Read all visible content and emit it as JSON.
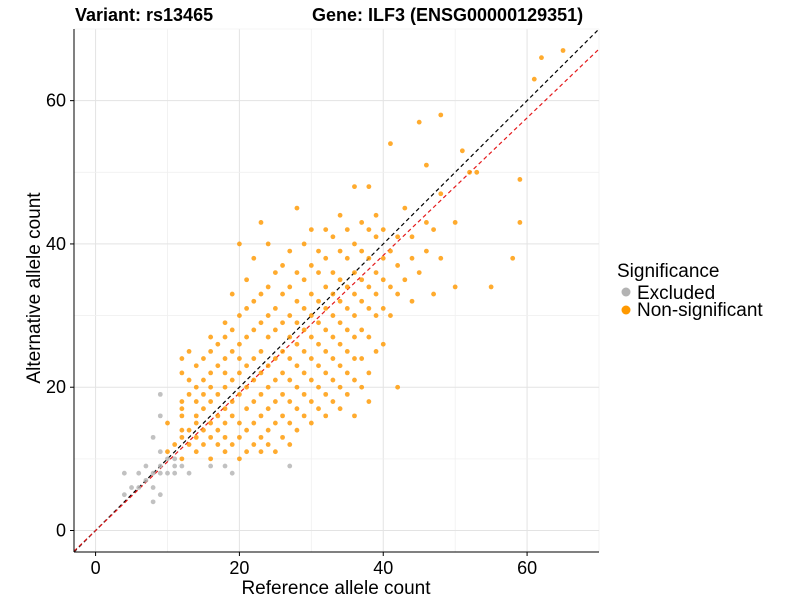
{
  "title_left": "Variant: rs13465",
  "title_right": "Gene: ILF3 (ENSG00000129351)",
  "legend": {
    "title": "Significance",
    "items": [
      {
        "label": "Excluded",
        "color": "#b3b3b3"
      },
      {
        "label": "Non-significant",
        "color": "#ff9900"
      }
    ]
  },
  "chart_data": {
    "type": "scatter",
    "title": "Variant: rs13465    Gene: ILF3 (ENSG00000129351)",
    "xlabel": "Reference allele count",
    "ylabel": "Alternative allele count",
    "xlim": [
      -3,
      70
    ],
    "ylim": [
      -3,
      70
    ],
    "xticks": [
      0,
      20,
      40,
      60
    ],
    "yticks": [
      0,
      20,
      40,
      60
    ],
    "grid": true,
    "legend_position": "right",
    "reference_lines": [
      {
        "name": "identity",
        "slope": 1,
        "intercept": 0,
        "color": "#000000",
        "style": "dashed"
      },
      {
        "name": "fit",
        "slope": 0.96,
        "intercept": 0,
        "color": "#e41a1c",
        "style": "dashed"
      }
    ],
    "series": [
      {
        "name": "Excluded",
        "color": "#b3b3b3",
        "points": [
          [
            4,
            5
          ],
          [
            4,
            8
          ],
          [
            5,
            6
          ],
          [
            6,
            8
          ],
          [
            6,
            6
          ],
          [
            7,
            7
          ],
          [
            7,
            9
          ],
          [
            8,
            4
          ],
          [
            8,
            6
          ],
          [
            8,
            8
          ],
          [
            8,
            13
          ],
          [
            9,
            5
          ],
          [
            9,
            8
          ],
          [
            9,
            9
          ],
          [
            9,
            11
          ],
          [
            9,
            16
          ],
          [
            9,
            19
          ],
          [
            10,
            8
          ],
          [
            10,
            10
          ],
          [
            11,
            8
          ],
          [
            11,
            9
          ],
          [
            11,
            10
          ],
          [
            12,
            9
          ],
          [
            13,
            8
          ],
          [
            16,
            9
          ],
          [
            18,
            9
          ],
          [
            19,
            8
          ],
          [
            27,
            9
          ]
        ]
      },
      {
        "name": "Non-significant",
        "color": "#ff9900",
        "points": [
          [
            10,
            11
          ],
          [
            10,
            15
          ],
          [
            11,
            12
          ],
          [
            12,
            10
          ],
          [
            12,
            13
          ],
          [
            12,
            14
          ],
          [
            12,
            16
          ],
          [
            12,
            17
          ],
          [
            12,
            18
          ],
          [
            12,
            22
          ],
          [
            12,
            24
          ],
          [
            13,
            12
          ],
          [
            13,
            14
          ],
          [
            13,
            19
          ],
          [
            13,
            21
          ],
          [
            13,
            25
          ],
          [
            14,
            11
          ],
          [
            14,
            13
          ],
          [
            14,
            15
          ],
          [
            14,
            16
          ],
          [
            14,
            18
          ],
          [
            14,
            20
          ],
          [
            14,
            23
          ],
          [
            15,
            12
          ],
          [
            15,
            14
          ],
          [
            15,
            17
          ],
          [
            15,
            19
          ],
          [
            15,
            21
          ],
          [
            15,
            24
          ],
          [
            16,
            10
          ],
          [
            16,
            13
          ],
          [
            16,
            15
          ],
          [
            16,
            18
          ],
          [
            16,
            20
          ],
          [
            16,
            22
          ],
          [
            16,
            25
          ],
          [
            16,
            27
          ],
          [
            17,
            12
          ],
          [
            17,
            14
          ],
          [
            17,
            16
          ],
          [
            17,
            19
          ],
          [
            17,
            23
          ],
          [
            17,
            26
          ],
          [
            18,
            11
          ],
          [
            18,
            13
          ],
          [
            18,
            15
          ],
          [
            18,
            17
          ],
          [
            18,
            20
          ],
          [
            18,
            22
          ],
          [
            18,
            24
          ],
          [
            18,
            27
          ],
          [
            18,
            29
          ],
          [
            19,
            12
          ],
          [
            19,
            16
          ],
          [
            19,
            18
          ],
          [
            19,
            21
          ],
          [
            19,
            25
          ],
          [
            19,
            28
          ],
          [
            19,
            33
          ],
          [
            20,
            10
          ],
          [
            20,
            13
          ],
          [
            20,
            15
          ],
          [
            20,
            19
          ],
          [
            20,
            22
          ],
          [
            20,
            24
          ],
          [
            20,
            26
          ],
          [
            20,
            30
          ],
          [
            20,
            40
          ],
          [
            21,
            11
          ],
          [
            21,
            14
          ],
          [
            21,
            17
          ],
          [
            21,
            20
          ],
          [
            21,
            23
          ],
          [
            21,
            27
          ],
          [
            21,
            31
          ],
          [
            21,
            35
          ],
          [
            22,
            12
          ],
          [
            22,
            15
          ],
          [
            22,
            18
          ],
          [
            22,
            21
          ],
          [
            22,
            24
          ],
          [
            22,
            28
          ],
          [
            22,
            32
          ],
          [
            22,
            38
          ],
          [
            23,
            11
          ],
          [
            23,
            13
          ],
          [
            23,
            16
          ],
          [
            23,
            19
          ],
          [
            23,
            22
          ],
          [
            23,
            25
          ],
          [
            23,
            29
          ],
          [
            23,
            33
          ],
          [
            23,
            43
          ],
          [
            24,
            12
          ],
          [
            24,
            14
          ],
          [
            24,
            17
          ],
          [
            24,
            20
          ],
          [
            24,
            23
          ],
          [
            24,
            27
          ],
          [
            24,
            30
          ],
          [
            24,
            34
          ],
          [
            24,
            40
          ],
          [
            25,
            11
          ],
          [
            25,
            15
          ],
          [
            25,
            18
          ],
          [
            25,
            21
          ],
          [
            25,
            24
          ],
          [
            25,
            28
          ],
          [
            25,
            31
          ],
          [
            25,
            36
          ],
          [
            26,
            13
          ],
          [
            26,
            16
          ],
          [
            26,
            19
          ],
          [
            26,
            22
          ],
          [
            26,
            25
          ],
          [
            26,
            29
          ],
          [
            26,
            33
          ],
          [
            26,
            37
          ],
          [
            27,
            12
          ],
          [
            27,
            15
          ],
          [
            27,
            18
          ],
          [
            27,
            21
          ],
          [
            27,
            24
          ],
          [
            27,
            27
          ],
          [
            27,
            30
          ],
          [
            27,
            34
          ],
          [
            27,
            39
          ],
          [
            28,
            14
          ],
          [
            28,
            17
          ],
          [
            28,
            20
          ],
          [
            28,
            23
          ],
          [
            28,
            26
          ],
          [
            28,
            29
          ],
          [
            28,
            32
          ],
          [
            28,
            36
          ],
          [
            28,
            45
          ],
          [
            29,
            16
          ],
          [
            29,
            19
          ],
          [
            29,
            22
          ],
          [
            29,
            25
          ],
          [
            29,
            28
          ],
          [
            29,
            31
          ],
          [
            29,
            35
          ],
          [
            29,
            40
          ],
          [
            30,
            15
          ],
          [
            30,
            18
          ],
          [
            30,
            21
          ],
          [
            30,
            24
          ],
          [
            30,
            27
          ],
          [
            30,
            30
          ],
          [
            30,
            33
          ],
          [
            30,
            37
          ],
          [
            30,
            42
          ],
          [
            31,
            17
          ],
          [
            31,
            20
          ],
          [
            31,
            23
          ],
          [
            31,
            26
          ],
          [
            31,
            29
          ],
          [
            31,
            32
          ],
          [
            31,
            36
          ],
          [
            31,
            39
          ],
          [
            32,
            16
          ],
          [
            32,
            19
          ],
          [
            32,
            22
          ],
          [
            32,
            25
          ],
          [
            32,
            28
          ],
          [
            32,
            31
          ],
          [
            32,
            34
          ],
          [
            32,
            38
          ],
          [
            32,
            42
          ],
          [
            33,
            18
          ],
          [
            33,
            21
          ],
          [
            33,
            24
          ],
          [
            33,
            27
          ],
          [
            33,
            30
          ],
          [
            33,
            33
          ],
          [
            33,
            36
          ],
          [
            33,
            41
          ],
          [
            34,
            17
          ],
          [
            34,
            20
          ],
          [
            34,
            23
          ],
          [
            34,
            26
          ],
          [
            34,
            29
          ],
          [
            34,
            32
          ],
          [
            34,
            35
          ],
          [
            34,
            39
          ],
          [
            34,
            44
          ],
          [
            35,
            19
          ],
          [
            35,
            22
          ],
          [
            35,
            25
          ],
          [
            35,
            28
          ],
          [
            35,
            31
          ],
          [
            35,
            34
          ],
          [
            35,
            38
          ],
          [
            35,
            42
          ],
          [
            36,
            16
          ],
          [
            36,
            21
          ],
          [
            36,
            24
          ],
          [
            36,
            27
          ],
          [
            36,
            30
          ],
          [
            36,
            33
          ],
          [
            36,
            36
          ],
          [
            36,
            40
          ],
          [
            36,
            48
          ],
          [
            37,
            20
          ],
          [
            37,
            24
          ],
          [
            37,
            28
          ],
          [
            37,
            32
          ],
          [
            37,
            35
          ],
          [
            37,
            39
          ],
          [
            37,
            43
          ],
          [
            38,
            18
          ],
          [
            38,
            22
          ],
          [
            38,
            27
          ],
          [
            38,
            31
          ],
          [
            38,
            34
          ],
          [
            38,
            38
          ],
          [
            38,
            42
          ],
          [
            38,
            48
          ],
          [
            39,
            25
          ],
          [
            39,
            30
          ],
          [
            39,
            33
          ],
          [
            39,
            36
          ],
          [
            39,
            41
          ],
          [
            39,
            44
          ],
          [
            40,
            26
          ],
          [
            40,
            31
          ],
          [
            40,
            35
          ],
          [
            40,
            38
          ],
          [
            40,
            42
          ],
          [
            41,
            30
          ],
          [
            41,
            34
          ],
          [
            41,
            39
          ],
          [
            41,
            54
          ],
          [
            42,
            20
          ],
          [
            42,
            33
          ],
          [
            42,
            37
          ],
          [
            42,
            41
          ],
          [
            43,
            35
          ],
          [
            43,
            45
          ],
          [
            44,
            32
          ],
          [
            44,
            38
          ],
          [
            44,
            41
          ],
          [
            45,
            36
          ],
          [
            45,
            57
          ],
          [
            46,
            39
          ],
          [
            46,
            43
          ],
          [
            46,
            51
          ],
          [
            47,
            33
          ],
          [
            47,
            42
          ],
          [
            48,
            38
          ],
          [
            48,
            47
          ],
          [
            48,
            58
          ],
          [
            50,
            34
          ],
          [
            50,
            43
          ],
          [
            51,
            53
          ],
          [
            52,
            50
          ],
          [
            53,
            50
          ],
          [
            55,
            34
          ],
          [
            58,
            38
          ],
          [
            59,
            43
          ],
          [
            59,
            49
          ],
          [
            61,
            63
          ],
          [
            62,
            66
          ],
          [
            65,
            67
          ]
        ]
      }
    ]
  }
}
